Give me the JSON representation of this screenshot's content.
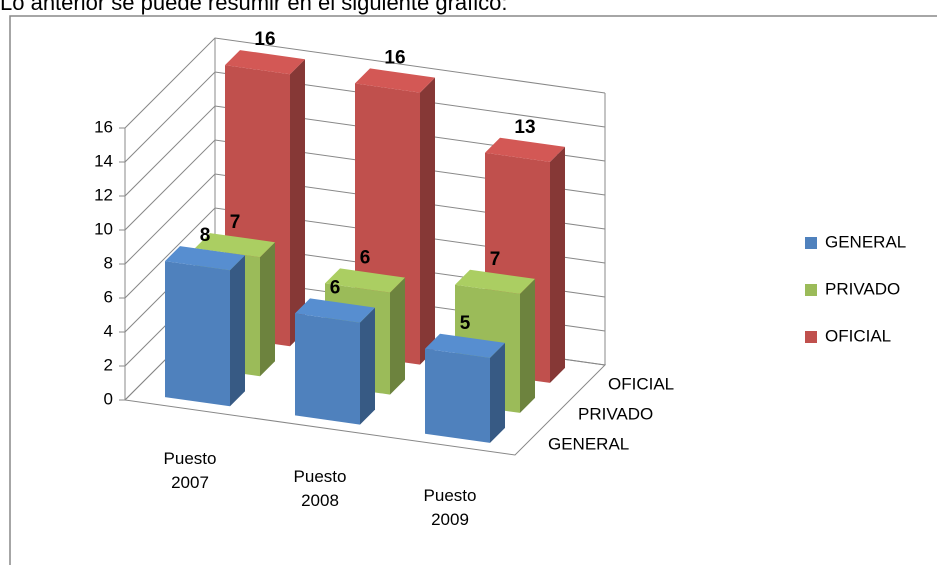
{
  "caption": "Lo anterior se puede resumir en el siguiente gráfico:",
  "chart_data": {
    "type": "bar3d",
    "categories": [
      "Puesto 2007",
      "Puesto 2008",
      "Puesto 2009"
    ],
    "series": [
      {
        "name": "GENERAL",
        "color": "#4f81bd",
        "values": [
          8,
          6,
          5
        ]
      },
      {
        "name": "PRIVADO",
        "color": "#9bbb59",
        "values": [
          7,
          6,
          7
        ]
      },
      {
        "name": "OFICIAL",
        "color": "#c0504d",
        "values": [
          16,
          16,
          13
        ]
      }
    ],
    "ylim": [
      0,
      16
    ],
    "yticks": [
      0,
      2,
      4,
      6,
      8,
      10,
      12,
      14,
      16
    ],
    "grid": true,
    "legend": "right"
  }
}
